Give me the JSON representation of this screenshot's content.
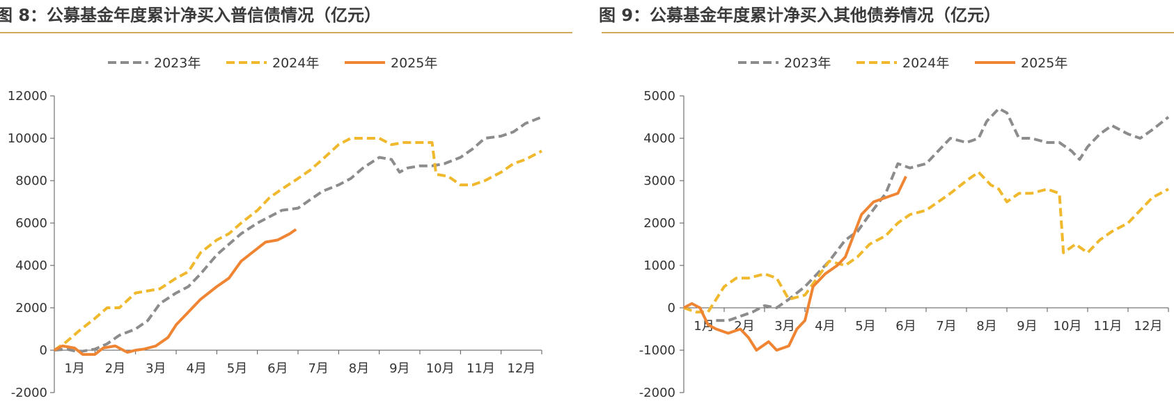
{
  "panels": [
    {
      "title": "图 8：公募基金年度累计净买入普信债情况（亿元）"
    },
    {
      "title": "图 9：公募基金年度累计净买入其他债券情况（亿元）"
    }
  ],
  "chart_data": [
    {
      "type": "line",
      "title": "图 8：公募基金年度累计净买入普信债情况（亿元）",
      "x_ticks": [
        "1月",
        "2月",
        "3月",
        "4月",
        "5月",
        "6月",
        "7月",
        "8月",
        "9月",
        "10月",
        "11月",
        "12月"
      ],
      "xlim": [
        1,
        13
      ],
      "ylim": [
        -2000,
        12000
      ],
      "y_ticks": [
        -2000,
        0,
        2000,
        4000,
        6000,
        8000,
        10000,
        12000
      ],
      "legend_position": "top-center",
      "grid": false,
      "series": [
        {
          "name": "2023年",
          "color": "#8c8c8c",
          "dash": true,
          "points": [
            [
              1,
              0
            ],
            [
              1.3,
              50
            ],
            [
              1.6,
              -80
            ],
            [
              2,
              50
            ],
            [
              2.3,
              300
            ],
            [
              2.6,
              700
            ],
            [
              3,
              1000
            ],
            [
              3.3,
              1400
            ],
            [
              3.6,
              2200
            ],
            [
              4,
              2700
            ],
            [
              4.3,
              3000
            ],
            [
              4.6,
              3600
            ],
            [
              5,
              4500
            ],
            [
              5.3,
              5000
            ],
            [
              5.6,
              5500
            ],
            [
              6,
              6000
            ],
            [
              6.3,
              6300
            ],
            [
              6.6,
              6600
            ],
            [
              7,
              6700
            ],
            [
              7.3,
              7100
            ],
            [
              7.6,
              7500
            ],
            [
              8,
              7800
            ],
            [
              8.3,
              8100
            ],
            [
              8.6,
              8600
            ],
            [
              9,
              9100
            ],
            [
              9.3,
              9000
            ],
            [
              9.5,
              8400
            ],
            [
              9.7,
              8600
            ],
            [
              10,
              8700
            ],
            [
              10.3,
              8700
            ],
            [
              10.6,
              8800
            ],
            [
              11,
              9100
            ],
            [
              11.3,
              9500
            ],
            [
              11.6,
              10000
            ],
            [
              12,
              10100
            ],
            [
              12.3,
              10300
            ],
            [
              12.6,
              10700
            ],
            [
              13,
              11000
            ]
          ]
        },
        {
          "name": "2024年",
          "color": "#f0b82d",
          "dash": true,
          "points": [
            [
              1,
              0
            ],
            [
              1.3,
              400
            ],
            [
              1.6,
              900
            ],
            [
              2,
              1500
            ],
            [
              2.3,
              2000
            ],
            [
              2.6,
              2000
            ],
            [
              3,
              2700
            ],
            [
              3.3,
              2800
            ],
            [
              3.6,
              2900
            ],
            [
              4,
              3400
            ],
            [
              4.3,
              3700
            ],
            [
              4.6,
              4600
            ],
            [
              5,
              5200
            ],
            [
              5.3,
              5500
            ],
            [
              5.6,
              6000
            ],
            [
              6,
              6600
            ],
            [
              6.3,
              7200
            ],
            [
              6.6,
              7600
            ],
            [
              7,
              8100
            ],
            [
              7.3,
              8500
            ],
            [
              7.6,
              9000
            ],
            [
              8,
              9700
            ],
            [
              8.3,
              10000
            ],
            [
              8.6,
              10000
            ],
            [
              9,
              10000
            ],
            [
              9.3,
              9700
            ],
            [
              9.6,
              9800
            ],
            [
              10,
              9800
            ],
            [
              10.3,
              9800
            ],
            [
              10.4,
              8300
            ],
            [
              10.7,
              8200
            ],
            [
              11,
              7800
            ],
            [
              11.3,
              7800
            ],
            [
              11.6,
              8000
            ],
            [
              12,
              8400
            ],
            [
              12.3,
              8800
            ],
            [
              12.6,
              9000
            ],
            [
              13,
              9400
            ]
          ]
        },
        {
          "name": "2025年",
          "color": "#ef8533",
          "dash": false,
          "points": [
            [
              1,
              0
            ],
            [
              1.2,
              200
            ],
            [
              1.5,
              100
            ],
            [
              1.7,
              -200
            ],
            [
              2,
              -200
            ],
            [
              2.2,
              100
            ],
            [
              2.5,
              200
            ],
            [
              2.8,
              -100
            ],
            [
              3,
              0
            ],
            [
              3.2,
              50
            ],
            [
              3.5,
              200
            ],
            [
              3.8,
              600
            ],
            [
              4,
              1200
            ],
            [
              4.3,
              1800
            ],
            [
              4.6,
              2400
            ],
            [
              5,
              3000
            ],
            [
              5.3,
              3400
            ],
            [
              5.6,
              4200
            ],
            [
              6,
              4800
            ],
            [
              6.2,
              5100
            ],
            [
              6.5,
              5200
            ],
            [
              6.8,
              5500
            ],
            [
              6.95,
              5700
            ]
          ]
        }
      ]
    },
    {
      "type": "line",
      "title": "图 9：公募基金年度累计净买入其他债券情况（亿元）",
      "x_ticks": [
        "1月",
        "2月",
        "3月",
        "4月",
        "5月",
        "6月",
        "7月",
        "8月",
        "9月",
        "10月",
        "11月",
        "12月"
      ],
      "xlim": [
        1,
        13
      ],
      "ylim": [
        -2000,
        5000
      ],
      "y_ticks": [
        -2000,
        -1000,
        0,
        1000,
        2000,
        3000,
        4000,
        5000
      ],
      "legend_position": "top-center",
      "grid": false,
      "series": [
        {
          "name": "2023年",
          "color": "#8c8c8c",
          "dash": true,
          "points": [
            [
              1.8,
              -300
            ],
            [
              2.1,
              -300
            ],
            [
              2.4,
              -200
            ],
            [
              2.7,
              -100
            ],
            [
              3,
              50
            ],
            [
              3.3,
              0
            ],
            [
              3.6,
              200
            ],
            [
              4,
              500
            ],
            [
              4.3,
              800
            ],
            [
              4.6,
              1100
            ],
            [
              5,
              1600
            ],
            [
              5.3,
              1800
            ],
            [
              5.6,
              2200
            ],
            [
              6,
              2700
            ],
            [
              6.3,
              3400
            ],
            [
              6.6,
              3300
            ],
            [
              7,
              3400
            ],
            [
              7.3,
              3700
            ],
            [
              7.6,
              4000
            ],
            [
              8,
              3900
            ],
            [
              8.3,
              4000
            ],
            [
              8.5,
              4400
            ],
            [
              8.8,
              4700
            ],
            [
              9,
              4600
            ],
            [
              9.3,
              4000
            ],
            [
              9.6,
              4000
            ],
            [
              10,
              3900
            ],
            [
              10.3,
              3900
            ],
            [
              10.6,
              3700
            ],
            [
              10.8,
              3500
            ],
            [
              11,
              3800
            ],
            [
              11.3,
              4100
            ],
            [
              11.6,
              4300
            ],
            [
              12,
              4100
            ],
            [
              12.3,
              4000
            ],
            [
              12.6,
              4200
            ],
            [
              13,
              4500
            ]
          ]
        },
        {
          "name": "2024年",
          "color": "#f0b82d",
          "dash": true,
          "points": [
            [
              1,
              0
            ],
            [
              1.3,
              -100
            ],
            [
              1.6,
              -100
            ],
            [
              2,
              500
            ],
            [
              2.3,
              700
            ],
            [
              2.6,
              700
            ],
            [
              3,
              800
            ],
            [
              3.3,
              700
            ],
            [
              3.6,
              200
            ],
            [
              4,
              300
            ],
            [
              4.3,
              700
            ],
            [
              4.6,
              1100
            ],
            [
              5,
              1000
            ],
            [
              5.3,
              1200
            ],
            [
              5.6,
              1500
            ],
            [
              6,
              1700
            ],
            [
              6.3,
              2000
            ],
            [
              6.6,
              2200
            ],
            [
              7,
              2300
            ],
            [
              7.3,
              2500
            ],
            [
              7.6,
              2700
            ],
            [
              8,
              3000
            ],
            [
              8.3,
              3200
            ],
            [
              8.6,
              2900
            ],
            [
              8.8,
              2800
            ],
            [
              9,
              2500
            ],
            [
              9.3,
              2700
            ],
            [
              9.6,
              2700
            ],
            [
              10,
              2800
            ],
            [
              10.3,
              2700
            ],
            [
              10.4,
              1300
            ],
            [
              10.7,
              1500
            ],
            [
              11,
              1300
            ],
            [
              11.3,
              1600
            ],
            [
              11.6,
              1800
            ],
            [
              12,
              2000
            ],
            [
              12.3,
              2300
            ],
            [
              12.6,
              2600
            ],
            [
              13,
              2800
            ]
          ]
        },
        {
          "name": "2025年",
          "color": "#ef8533",
          "dash": false,
          "points": [
            [
              1,
              0
            ],
            [
              1.2,
              100
            ],
            [
              1.4,
              0
            ],
            [
              1.6,
              -400
            ],
            [
              1.8,
              -500
            ],
            [
              2.1,
              -600
            ],
            [
              2.4,
              -500
            ],
            [
              2.6,
              -700
            ],
            [
              2.8,
              -1000
            ],
            [
              3.1,
              -800
            ],
            [
              3.3,
              -1000
            ],
            [
              3.6,
              -900
            ],
            [
              3.8,
              -500
            ],
            [
              4,
              -300
            ],
            [
              4.2,
              500
            ],
            [
              4.5,
              800
            ],
            [
              4.8,
              1000
            ],
            [
              5,
              1200
            ],
            [
              5.2,
              1700
            ],
            [
              5.4,
              2200
            ],
            [
              5.7,
              2500
            ],
            [
              6,
              2600
            ],
            [
              6.3,
              2700
            ],
            [
              6.5,
              3100
            ]
          ]
        }
      ]
    }
  ]
}
